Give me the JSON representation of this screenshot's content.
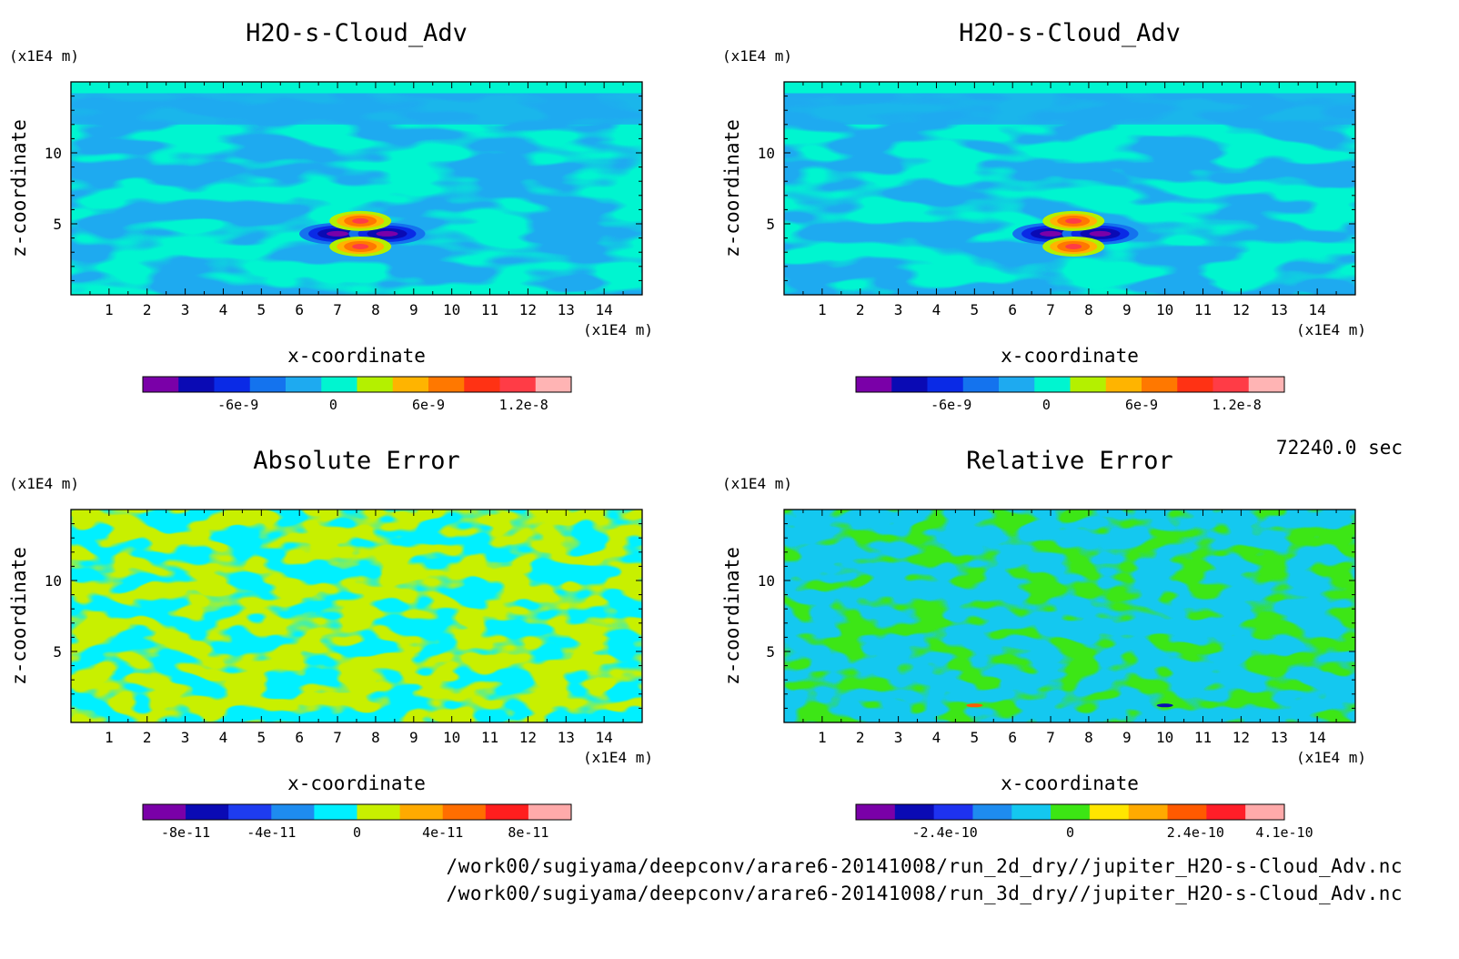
{
  "panels": [
    {
      "title": "H2O-s-Cloud_Adv",
      "xlabel": "x-coordinate",
      "ylabel": "z-coordinate",
      "xunit": "(x1E4 m)",
      "yunit": "(x1E4 m)",
      "x_ticks": [
        "1",
        "2",
        "3",
        "4",
        "5",
        "6",
        "7",
        "8",
        "9",
        "10",
        "11",
        "12",
        "13",
        "14"
      ],
      "y_ticks": [
        "5",
        "10"
      ],
      "colorbar_labels": [
        "-6e-9",
        "0",
        "6e-9",
        "1.2e-8"
      ]
    },
    {
      "title": "H2O-s-Cloud_Adv",
      "xlabel": "x-coordinate",
      "ylabel": "z-coordinate",
      "xunit": "(x1E4 m)",
      "yunit": "(x1E4 m)",
      "x_ticks": [
        "1",
        "2",
        "3",
        "4",
        "5",
        "6",
        "7",
        "8",
        "9",
        "10",
        "11",
        "12",
        "13",
        "14"
      ],
      "y_ticks": [
        "5",
        "10"
      ],
      "colorbar_labels": [
        "-6e-9",
        "0",
        "6e-9",
        "1.2e-8"
      ]
    },
    {
      "title": "Absolute Error",
      "xlabel": "x-coordinate",
      "ylabel": "z-coordinate",
      "xunit": "(x1E4 m)",
      "yunit": "(x1E4 m)",
      "x_ticks": [
        "1",
        "2",
        "3",
        "4",
        "5",
        "6",
        "7",
        "8",
        "9",
        "10",
        "11",
        "12",
        "13",
        "14"
      ],
      "y_ticks": [
        "5",
        "10"
      ],
      "colorbar_labels": [
        "-8e-11",
        "-4e-11",
        "0",
        "4e-11",
        "8e-11"
      ]
    },
    {
      "title": "Relative Error",
      "xlabel": "x-coordinate",
      "ylabel": "z-coordinate",
      "xunit": "(x1E4 m)",
      "yunit": "(x1E4 m)",
      "x_ticks": [
        "1",
        "2",
        "3",
        "4",
        "5",
        "6",
        "7",
        "8",
        "9",
        "10",
        "11",
        "12",
        "13",
        "14"
      ],
      "y_ticks": [
        "5",
        "10"
      ],
      "colorbar_labels": [
        "-2.4e-10",
        "0",
        "2.4e-10",
        "4.1e-10"
      ]
    }
  ],
  "timestamp": "72240.0 sec",
  "footer": [
    "/work00/sugiyama/deepconv/arare6-20141008/run_2d_dry//jupiter_H2O-s-Cloud_Adv.nc",
    "/work00/sugiyama/deepconv/arare6-20141008/run_3d_dry//jupiter_H2O-s-Cloud_Adv.nc"
  ],
  "colors": {
    "h2o_scale": [
      "#7a00a8",
      "#0a0ab4",
      "#0a2ae6",
      "#1473ee",
      "#1eaaf0",
      "#00f5d0",
      "#b4f000",
      "#ffb400",
      "#ff7800",
      "#ff3214",
      "#ff3c46",
      "#ffb4b4"
    ],
    "abs_scale": [
      "#7a00a8",
      "#0a0ab4",
      "#1e3cf0",
      "#1e8cf0",
      "#00f0ff",
      "#c8f000",
      "#ffaa00",
      "#ff6e00",
      "#ff1e1e",
      "#ffaaaa"
    ],
    "rel_scale": [
      "#7a00a8",
      "#0a0ab4",
      "#1e32f0",
      "#1e8cf0",
      "#14c8f0",
      "#3ce614",
      "#ffe600",
      "#ffaa00",
      "#ff5a00",
      "#ff1e28",
      "#ffaaaa"
    ]
  },
  "chart_data": [
    {
      "type": "heatmap",
      "title": "H2O-s-Cloud_Adv",
      "xlabel": "x-coordinate",
      "ylabel": "z-coordinate",
      "xlim": [
        0,
        15
      ],
      "ylim": [
        0,
        15
      ],
      "colorbar_ticks": [
        -6e-09,
        0,
        6e-09,
        1.2e-08
      ],
      "features": [
        {
          "type": "negative-lobe",
          "x": 7.0,
          "z": 4.3,
          "min": -9e-09
        },
        {
          "type": "negative-lobe",
          "x": 8.3,
          "z": 4.3,
          "min": -9e-09
        },
        {
          "type": "positive-lobe",
          "x": 7.6,
          "z": 5.2,
          "max": 1.2e-08
        },
        {
          "type": "positive-lobe",
          "x": 7.6,
          "z": 3.4,
          "max": 1.2e-08
        }
      ]
    },
    {
      "type": "heatmap",
      "title": "H2O-s-Cloud_Adv",
      "xlabel": "x-coordinate",
      "ylabel": "z-coordinate",
      "xlim": [
        0,
        15
      ],
      "ylim": [
        0,
        15
      ],
      "colorbar_ticks": [
        -6e-09,
        0,
        6e-09,
        1.2e-08
      ],
      "features": [
        {
          "type": "negative-lobe",
          "x": 7.0,
          "z": 4.3,
          "min": -9e-09
        },
        {
          "type": "negative-lobe",
          "x": 8.3,
          "z": 4.3,
          "min": -9e-09
        },
        {
          "type": "positive-lobe",
          "x": 7.6,
          "z": 5.2,
          "max": 1.2e-08
        },
        {
          "type": "positive-lobe",
          "x": 7.6,
          "z": 3.4,
          "max": 1.2e-08
        }
      ]
    },
    {
      "type": "heatmap",
      "title": "Absolute Error",
      "xlabel": "x-coordinate",
      "ylabel": "z-coordinate",
      "xlim": [
        0,
        15
      ],
      "ylim": [
        0,
        15
      ],
      "colorbar_ticks": [
        -8e-11,
        -4e-11,
        0,
        4e-11,
        8e-11
      ],
      "value_range": [
        -2e-11,
        2e-11
      ]
    },
    {
      "type": "heatmap",
      "title": "Relative Error",
      "xlabel": "x-coordinate",
      "ylabel": "z-coordinate",
      "xlim": [
        0,
        15
      ],
      "ylim": [
        0,
        15
      ],
      "colorbar_ticks": [
        -2.4e-10,
        0,
        2.4e-10,
        4.1e-10
      ],
      "value_range": [
        -5e-11,
        5e-11
      ]
    }
  ]
}
